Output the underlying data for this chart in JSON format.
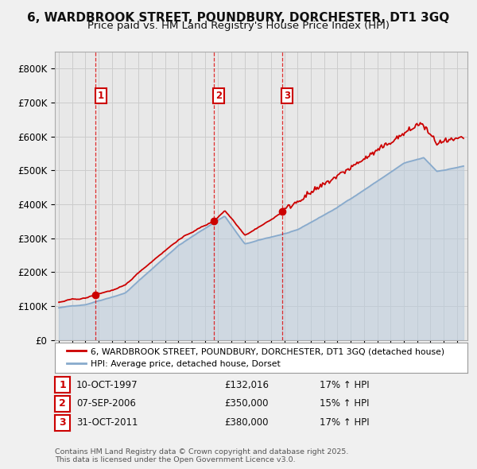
{
  "title": "6, WARDBROOK STREET, POUNDBURY, DORCHESTER, DT1 3GQ",
  "subtitle": "Price paid vs. HM Land Registry's House Price Index (HPI)",
  "sale_years": [
    1997.78,
    2006.67,
    2011.83
  ],
  "sale_prices": [
    132016,
    350000,
    380000
  ],
  "sale_labels": [
    "1",
    "2",
    "3"
  ],
  "sale_date_labels": [
    "10-OCT-1997",
    "07-SEP-2006",
    "31-OCT-2011"
  ],
  "sale_price_labels": [
    "£132,016",
    "£350,000",
    "£380,000"
  ],
  "sale_hpi_labels": [
    "17% ↑ HPI",
    "15% ↑ HPI",
    "17% ↑ HPI"
  ],
  "property_color": "#cc0000",
  "hpi_color": "#88aacc",
  "hpi_fill_color": "#bbccdd",
  "title_fontsize": 11,
  "subtitle_fontsize": 9.5,
  "ylim": [
    0,
    850000
  ],
  "yticks": [
    0,
    100000,
    200000,
    300000,
    400000,
    500000,
    600000,
    700000,
    800000
  ],
  "ytick_labels": [
    "£0",
    "£100K",
    "£200K",
    "£300K",
    "£400K",
    "£500K",
    "£600K",
    "£700K",
    "£800K"
  ],
  "legend_property": "6, WARDBROOK STREET, POUNDBURY, DORCHESTER, DT1 3GQ (detached house)",
  "legend_hpi": "HPI: Average price, detached house, Dorset",
  "footer": "Contains HM Land Registry data © Crown copyright and database right 2025.\nThis data is licensed under the Open Government Licence v3.0.",
  "background_color": "#f0f0f0",
  "plot_bg_color": "#e8e8e8",
  "grid_color": "#cccccc"
}
